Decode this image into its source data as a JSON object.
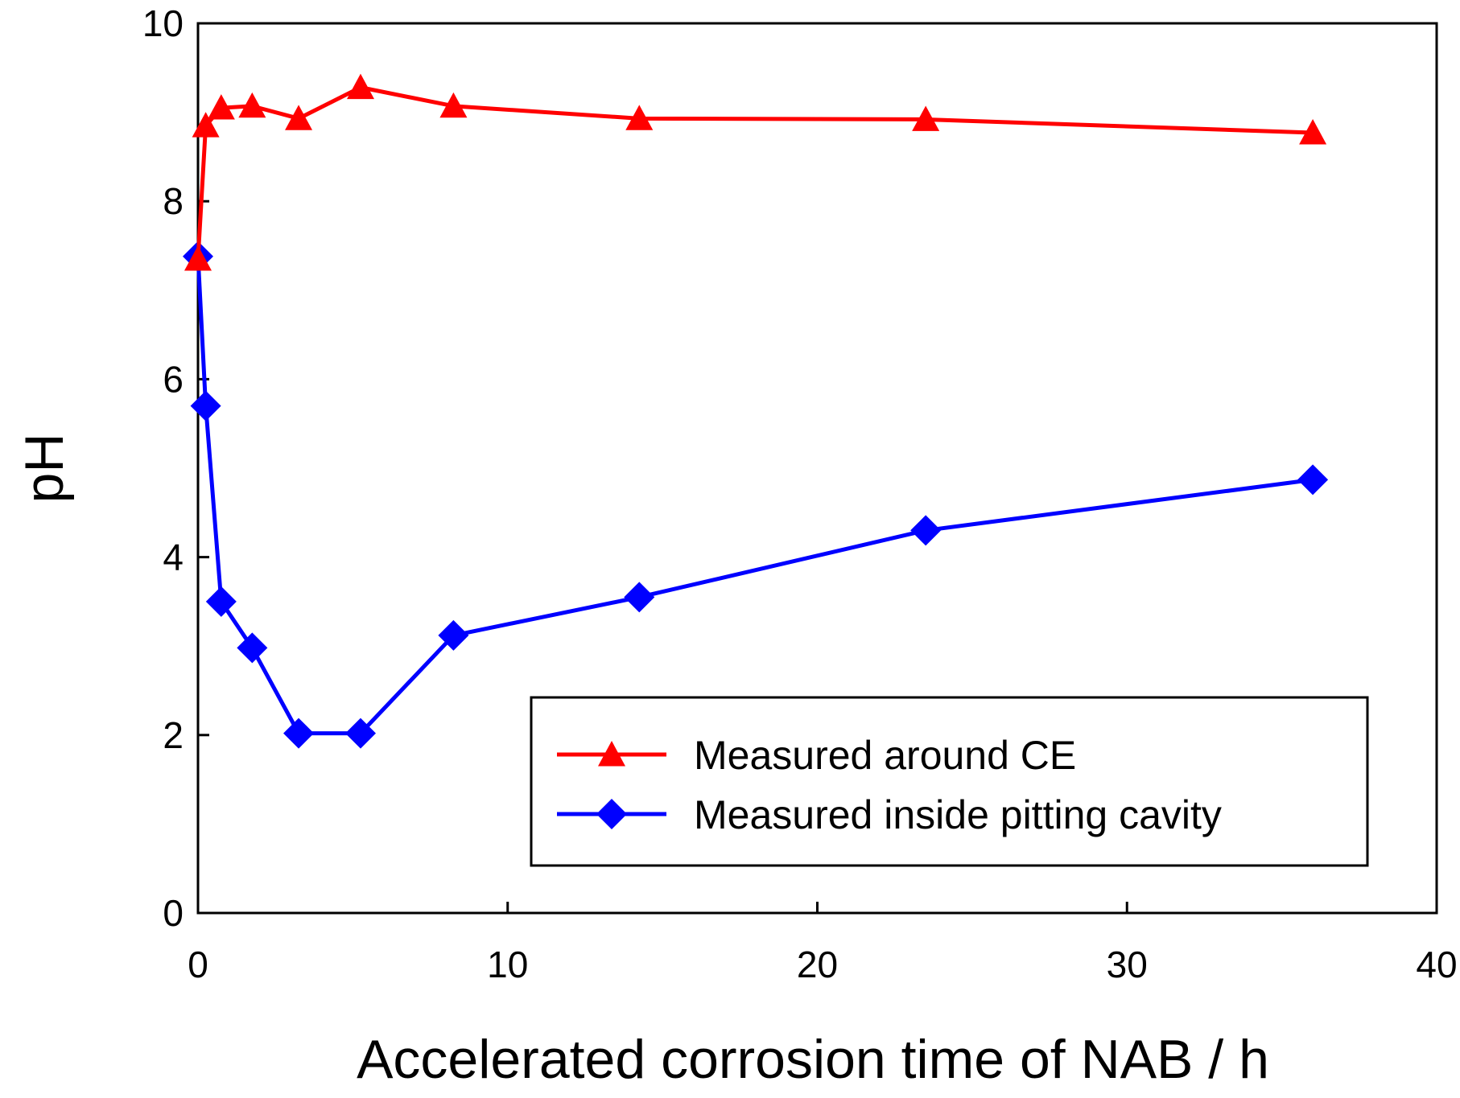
{
  "chart_data": {
    "type": "line",
    "title": "",
    "xlabel": "Accelerated corrosion time of NAB / h",
    "ylabel": "pH",
    "xlim": [
      0,
      40
    ],
    "ylim": [
      0,
      10
    ],
    "xticks": [
      "0",
      "10",
      "20",
      "30",
      "40"
    ],
    "yticks": [
      "0",
      "2",
      "4",
      "6",
      "8",
      "10"
    ],
    "grid": false,
    "legend_position": "bottom-right",
    "series": [
      {
        "name": "Measured around CE",
        "color": "#ff0000",
        "marker": "triangle",
        "x": [
          0,
          0.25,
          0.75,
          1.75,
          3.25,
          5.25,
          8.25,
          14.25,
          23.5,
          36
        ],
        "y": [
          7.35,
          8.85,
          9.05,
          9.07,
          8.93,
          9.28,
          9.07,
          8.93,
          8.92,
          8.77
        ]
      },
      {
        "name": "Measured inside pitting cavity",
        "color": "#0000ff",
        "marker": "diamond",
        "x": [
          0,
          0.25,
          0.75,
          1.75,
          3.25,
          5.25,
          8.25,
          14.25,
          23.5,
          36
        ],
        "y": [
          7.38,
          5.7,
          3.5,
          2.98,
          2.02,
          2.02,
          3.12,
          3.55,
          4.3,
          4.87
        ]
      }
    ]
  }
}
